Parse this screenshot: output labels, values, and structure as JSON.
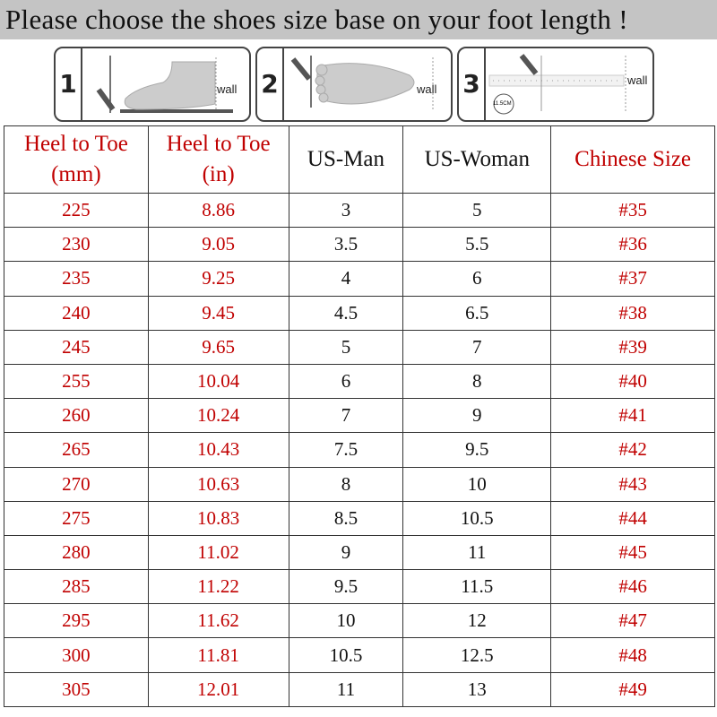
{
  "title": "Please choose the shoes size base on your foot length !",
  "steps": [
    {
      "number": "1",
      "wall_label": "wall"
    },
    {
      "number": "2",
      "wall_label": "wall"
    },
    {
      "number": "3",
      "wall_label": "wall",
      "badge": "11.5CM"
    }
  ],
  "colors": {
    "red": "#c00000",
    "title_bg": "#c4c4c4"
  },
  "table": {
    "headers": [
      "Heel to Toe (mm)",
      "Heel to Toe (in)",
      "US-Man",
      "US-Woman",
      "Chinese Size"
    ],
    "header_lines": [
      [
        "Heel to Toe",
        "(mm)"
      ],
      [
        "Heel to Toe",
        "(in)"
      ],
      [
        "US-Man"
      ],
      [
        "US-Woman"
      ],
      [
        "Chinese Size"
      ]
    ],
    "rows": [
      [
        "225",
        "8.86",
        "3",
        "5",
        "#35"
      ],
      [
        "230",
        "9.05",
        "3.5",
        "5.5",
        "#36"
      ],
      [
        "235",
        "9.25",
        "4",
        "6",
        "#37"
      ],
      [
        "240",
        "9.45",
        "4.5",
        "6.5",
        "#38"
      ],
      [
        "245",
        "9.65",
        "5",
        "7",
        "#39"
      ],
      [
        "255",
        "10.04",
        "6",
        "8",
        "#40"
      ],
      [
        "260",
        "10.24",
        "7",
        "9",
        "#41"
      ],
      [
        "265",
        "10.43",
        "7.5",
        "9.5",
        "#42"
      ],
      [
        "270",
        "10.63",
        "8",
        "10",
        "#43"
      ],
      [
        "275",
        "10.83",
        "8.5",
        "10.5",
        "#44"
      ],
      [
        "280",
        "11.02",
        "9",
        "11",
        "#45"
      ],
      [
        "285",
        "11.22",
        "9.5",
        "11.5",
        "#46"
      ],
      [
        "295",
        "11.62",
        "10",
        "12",
        "#47"
      ],
      [
        "300",
        "11.81",
        "10.5",
        "12.5",
        "#48"
      ],
      [
        "305",
        "12.01",
        "11",
        "13",
        "#49"
      ]
    ]
  }
}
